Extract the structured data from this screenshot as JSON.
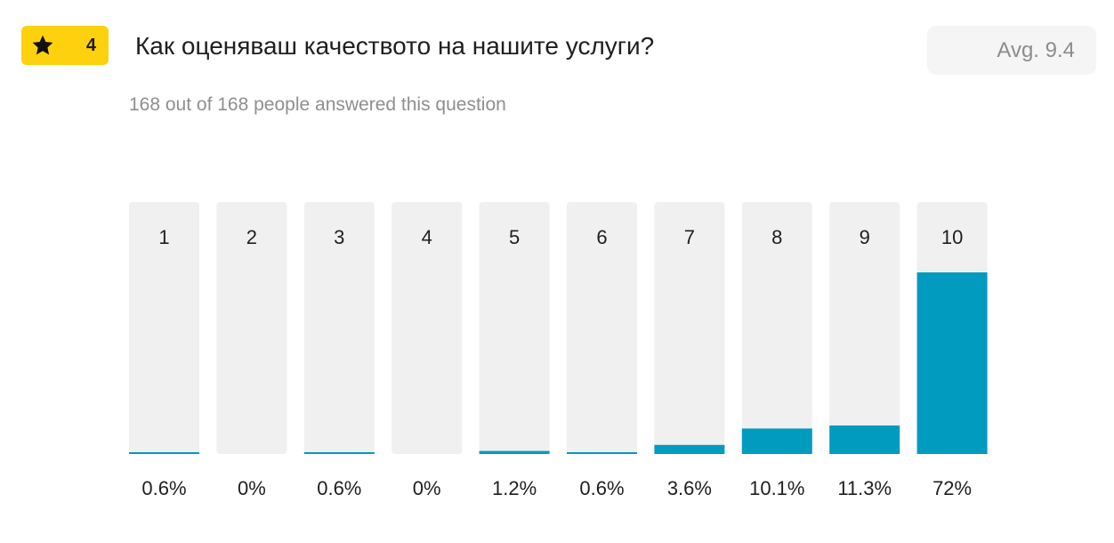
{
  "question": {
    "number": "4",
    "title": "Как оценяваш качеството на нашите услуги?",
    "avg_label": "Avg. 9.4",
    "answered_text": "168 out of 168 people answered this question",
    "icon": "star-icon"
  },
  "colors": {
    "badge": "#fdd10d",
    "bar_fill": "#009bbf",
    "bar_track": "#f0f0f0",
    "text": "#1f1f1f",
    "muted": "#8f8f8f"
  },
  "chart_data": {
    "type": "bar",
    "categories": [
      "1",
      "2",
      "3",
      "4",
      "5",
      "6",
      "7",
      "8",
      "9",
      "10"
    ],
    "values": [
      0.6,
      0,
      0.6,
      0,
      1.2,
      0.6,
      3.6,
      10.1,
      11.3,
      72
    ],
    "value_labels": [
      "0.6%",
      "0%",
      "0.6%",
      "0%",
      "1.2%",
      "0.6%",
      "3.6%",
      "10.1%",
      "11.3%",
      "72%"
    ],
    "ylim": [
      0,
      100
    ],
    "grid": false,
    "legend": "none"
  }
}
